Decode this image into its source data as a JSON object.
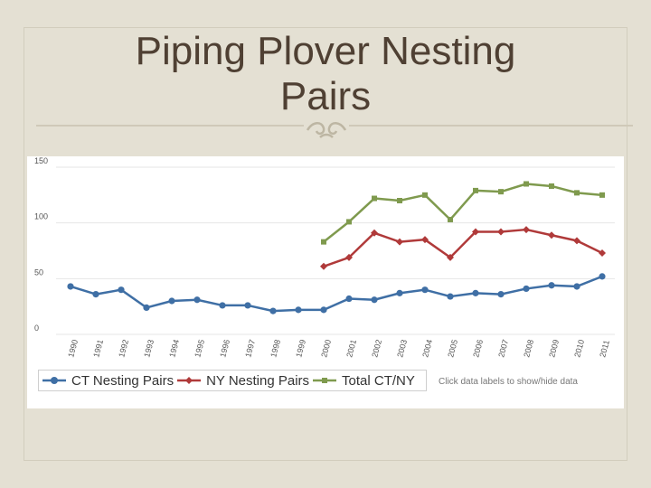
{
  "slide": {
    "title_line1": "Piping Plover Nesting",
    "title_line2": "Pairs"
  },
  "chart_hint": "Click data labels to show/hide data",
  "chart_data": {
    "type": "line",
    "x": [
      "1990",
      "1991",
      "1992",
      "1993",
      "1994",
      "1995",
      "1996",
      "1997",
      "1998",
      "1999",
      "2000",
      "2001",
      "2002",
      "2003",
      "2004",
      "2005",
      "2006",
      "2007",
      "2008",
      "2009",
      "2010",
      "2011"
    ],
    "ylim": [
      0,
      150
    ],
    "yticks": [
      0,
      50,
      100,
      150
    ],
    "grid": true,
    "legend_position": "bottom-left",
    "series": [
      {
        "name": "CT Nesting Pairs",
        "color": "#3f6fa5",
        "values": [
          43,
          36,
          40,
          24,
          30,
          31,
          26,
          26,
          21,
          22,
          22,
          32,
          31,
          37,
          40,
          34,
          37,
          36,
          41,
          44,
          43,
          52
        ]
      },
      {
        "name": "NY Nesting Pairs",
        "color": "#b03a3a",
        "values": [
          null,
          null,
          null,
          null,
          null,
          null,
          null,
          null,
          null,
          null,
          61,
          69,
          91,
          83,
          85,
          69,
          92,
          92,
          94,
          89,
          84,
          73
        ]
      },
      {
        "name": "Total CT/NY",
        "color": "#7f9a4e",
        "values": [
          null,
          null,
          null,
          null,
          null,
          null,
          null,
          null,
          null,
          null,
          83,
          101,
          122,
          120,
          125,
          103,
          129,
          128,
          135,
          133,
          127,
          125
        ]
      }
    ]
  }
}
